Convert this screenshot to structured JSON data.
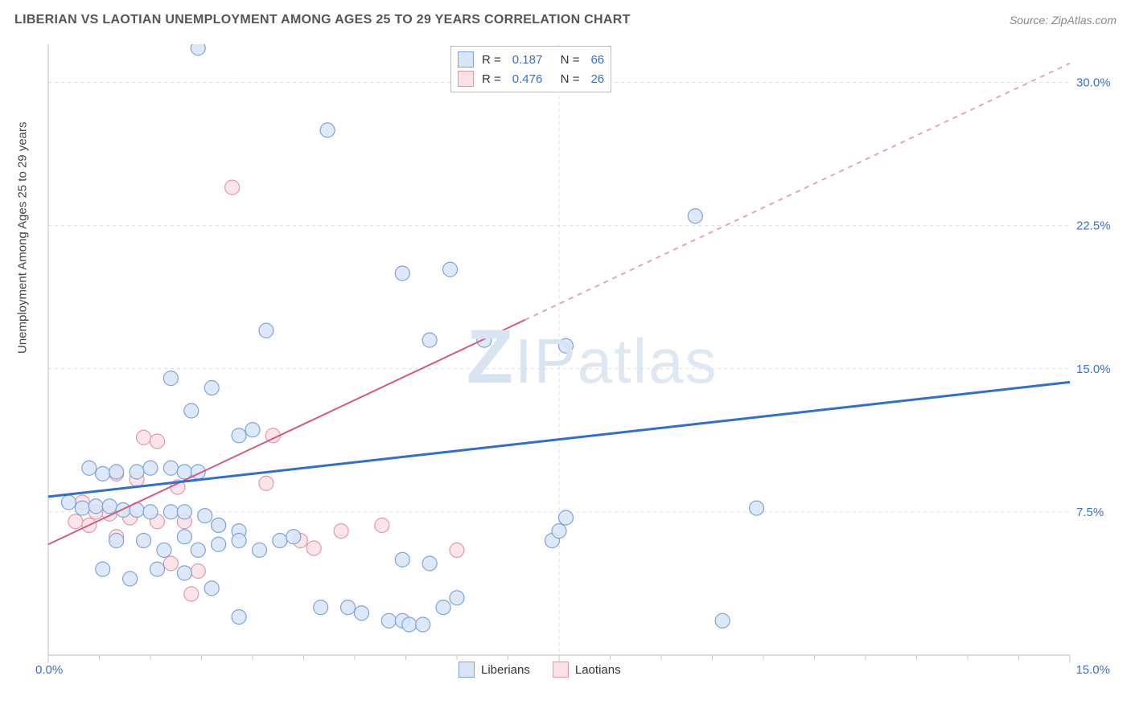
{
  "header": {
    "title": "LIBERIAN VS LAOTIAN UNEMPLOYMENT AMONG AGES 25 TO 29 YEARS CORRELATION CHART",
    "source": "Source: ZipAtlas.com"
  },
  "chart": {
    "type": "scatter",
    "ylabel": "Unemployment Among Ages 25 to 29 years",
    "watermark": "ZIPatlas",
    "background_color": "#ffffff",
    "grid_color": "#dcdcdc",
    "axis_color": "#c8c8c8",
    "text_color": "#444444",
    "value_color": "#3b6fc9",
    "xlim": [
      0,
      15
    ],
    "ylim": [
      0,
      32
    ],
    "xtick_major": 7.5,
    "xtick_minor_step": 0.75,
    "ytick_labels": [
      7.5,
      15.0,
      22.5,
      30.0
    ],
    "ytick_step": 7.5,
    "x_axis_labels": {
      "left": "0.0%",
      "right": "15.0%"
    },
    "marker_radius": 9,
    "marker_stroke_width": 1.2,
    "series": {
      "liberians": {
        "label": "Liberians",
        "fill": "#d7e5f7",
        "stroke": "#7ba5d6",
        "line_color": "#2e6fd1",
        "line_width": 3,
        "r_value": "0.187",
        "n_value": "66",
        "trend": {
          "x1": 0,
          "y1": 8.3,
          "x2": 15,
          "y2": 14.3
        },
        "points": [
          [
            2.2,
            31.8
          ],
          [
            4.1,
            27.5
          ],
          [
            5.2,
            20.0
          ],
          [
            5.9,
            20.2
          ],
          [
            9.5,
            23.0
          ],
          [
            5.6,
            16.5
          ],
          [
            6.4,
            16.5
          ],
          [
            7.6,
            16.2
          ],
          [
            3.2,
            17.0
          ],
          [
            1.8,
            14.5
          ],
          [
            2.1,
            12.8
          ],
          [
            2.4,
            14.0
          ],
          [
            2.8,
            11.5
          ],
          [
            3.0,
            11.8
          ],
          [
            0.6,
            9.8
          ],
          [
            0.8,
            9.5
          ],
          [
            1.0,
            9.6
          ],
          [
            1.3,
            9.6
          ],
          [
            1.5,
            9.8
          ],
          [
            1.8,
            9.8
          ],
          [
            2.0,
            9.6
          ],
          [
            2.2,
            9.6
          ],
          [
            0.3,
            8.0
          ],
          [
            0.5,
            7.7
          ],
          [
            0.7,
            7.8
          ],
          [
            0.9,
            7.8
          ],
          [
            1.1,
            7.6
          ],
          [
            1.3,
            7.6
          ],
          [
            1.5,
            7.5
          ],
          [
            1.8,
            7.5
          ],
          [
            2.0,
            7.5
          ],
          [
            2.3,
            7.3
          ],
          [
            2.5,
            6.8
          ],
          [
            2.8,
            6.5
          ],
          [
            10.4,
            7.7
          ],
          [
            7.6,
            7.2
          ],
          [
            7.4,
            6.0
          ],
          [
            0.8,
            4.5
          ],
          [
            1.0,
            6.0
          ],
          [
            1.4,
            6.0
          ],
          [
            1.7,
            5.5
          ],
          [
            2.0,
            6.2
          ],
          [
            2.2,
            5.5
          ],
          [
            2.5,
            5.8
          ],
          [
            2.8,
            6.0
          ],
          [
            3.1,
            5.5
          ],
          [
            3.4,
            6.0
          ],
          [
            2.0,
            4.3
          ],
          [
            1.6,
            4.5
          ],
          [
            1.2,
            4.0
          ],
          [
            2.4,
            3.5
          ],
          [
            2.8,
            2.0
          ],
          [
            5.6,
            4.8
          ],
          [
            6.0,
            3.0
          ],
          [
            4.0,
            2.5
          ],
          [
            4.4,
            2.5
          ],
          [
            5.0,
            1.8
          ],
          [
            5.2,
            1.8
          ],
          [
            5.3,
            1.6
          ],
          [
            5.5,
            1.6
          ],
          [
            5.8,
            2.5
          ],
          [
            7.5,
            6.5
          ],
          [
            9.9,
            1.8
          ],
          [
            5.2,
            5.0
          ],
          [
            4.6,
            2.2
          ],
          [
            3.6,
            6.2
          ]
        ]
      },
      "laotians": {
        "label": "Laotians",
        "fill": "#fbe0e6",
        "stroke": "#e297aa",
        "line_color": "#d55b7b",
        "line_width": 2,
        "line_dash_after_x": 7.0,
        "r_value": "0.476",
        "n_value": "26",
        "trend": {
          "x1": 0,
          "y1": 5.8,
          "x2": 15,
          "y2": 31.0
        },
        "points": [
          [
            2.7,
            24.5
          ],
          [
            3.3,
            11.5
          ],
          [
            1.4,
            11.4
          ],
          [
            1.6,
            11.2
          ],
          [
            1.0,
            9.5
          ],
          [
            1.3,
            9.2
          ],
          [
            1.9,
            8.8
          ],
          [
            0.5,
            8.0
          ],
          [
            0.7,
            7.5
          ],
          [
            0.9,
            7.4
          ],
          [
            1.2,
            7.2
          ],
          [
            1.6,
            7.0
          ],
          [
            2.0,
            7.0
          ],
          [
            2.5,
            6.8
          ],
          [
            3.2,
            9.0
          ],
          [
            3.7,
            6.0
          ],
          [
            3.9,
            5.6
          ],
          [
            4.3,
            6.5
          ],
          [
            4.9,
            6.8
          ],
          [
            6.0,
            5.5
          ],
          [
            1.8,
            4.8
          ],
          [
            2.2,
            4.4
          ],
          [
            2.1,
            3.2
          ],
          [
            0.4,
            7.0
          ],
          [
            0.6,
            6.8
          ],
          [
            1.0,
            6.2
          ]
        ]
      }
    },
    "stats_legend": {
      "r_label": "R",
      "n_label": "N",
      "equals": "="
    }
  }
}
